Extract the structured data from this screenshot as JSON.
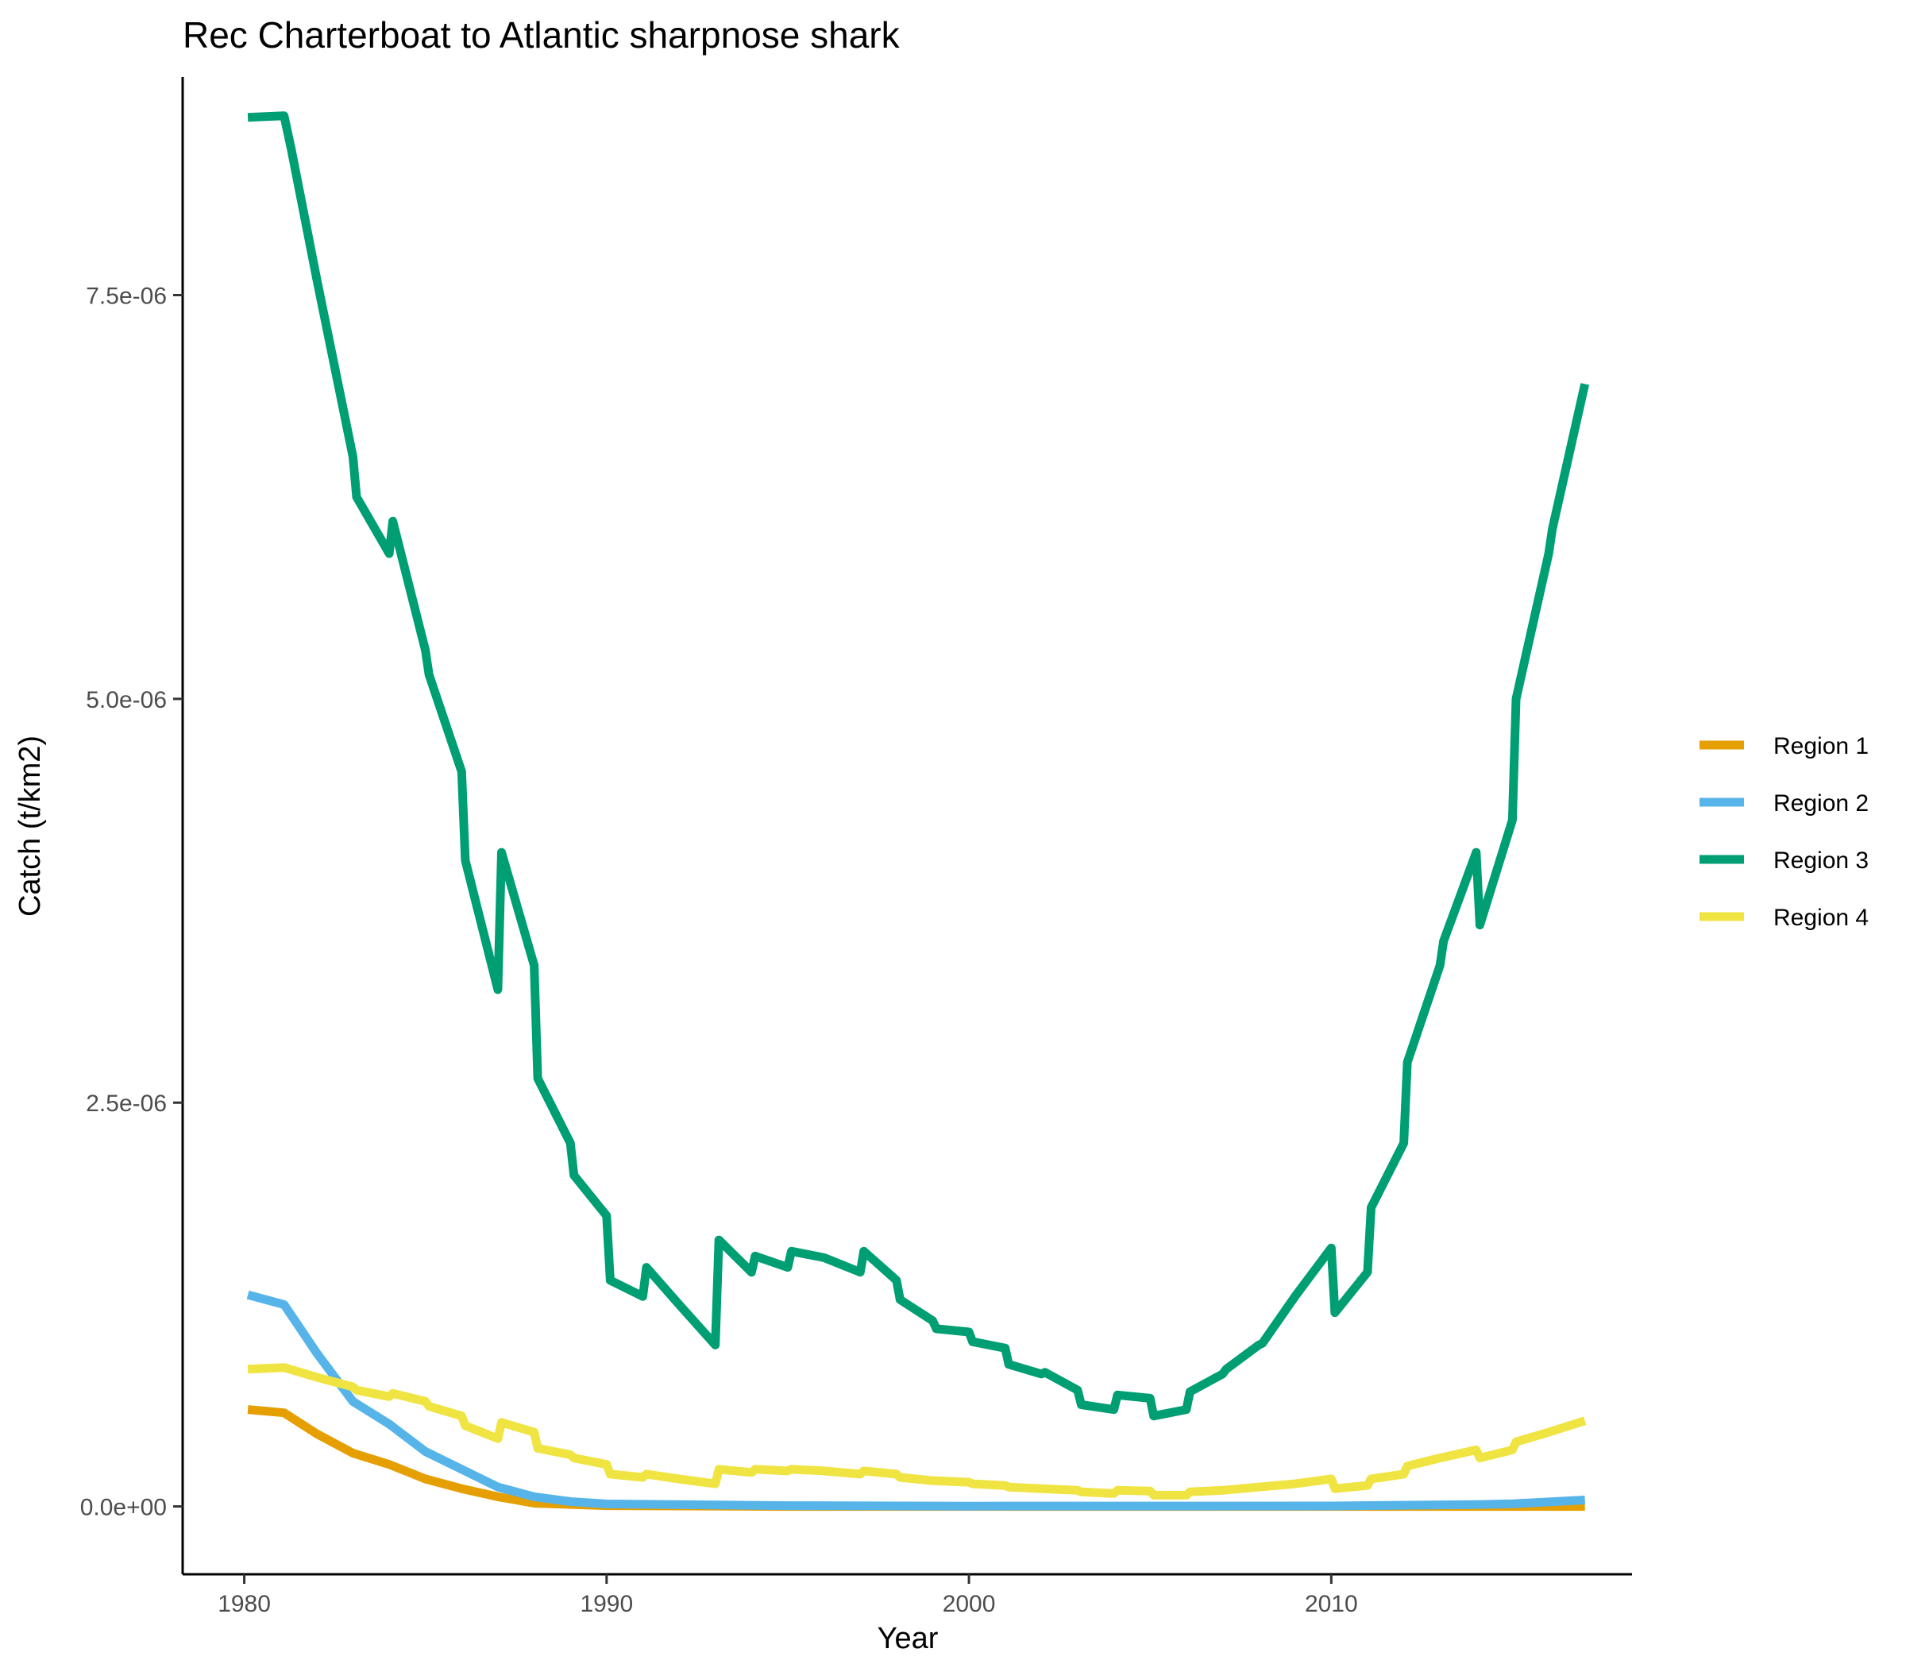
{
  "chart_data": {
    "type": "line",
    "title": "Rec Charterboat to Atlantic sharpnose shark",
    "xlabel": "Year",
    "ylabel": "Catch (t/km2)",
    "xlim": [
      1978.3,
      2018.3
    ],
    "ylim": [
      -4.2e-07,
      8.85e-06
    ],
    "x_ticks": [
      1980,
      1990,
      2000,
      2010
    ],
    "x_tick_labels": [
      "1980",
      "1990",
      "2000",
      "2010"
    ],
    "y_ticks": [
      0,
      2.5e-06,
      5e-06,
      7.5e-06
    ],
    "y_tick_labels": [
      "0.0e+00",
      "2.5e-06",
      "5.0e-06",
      "7.5e-06"
    ],
    "grid": false,
    "legend_position": "right",
    "series": [
      {
        "name": "Region 1",
        "color": "#E69F00",
        "points": [
          [
            1980.1,
            6e-07
          ],
          [
            1981.1,
            5.8e-07
          ],
          [
            1982,
            4.5e-07
          ],
          [
            1983,
            3.3e-07
          ],
          [
            1984,
            2.6e-07
          ],
          [
            1985,
            1.7e-07
          ],
          [
            1986,
            1.1e-07
          ],
          [
            1987,
            6e-08
          ],
          [
            1988,
            2e-08
          ],
          [
            1990,
            5e-09
          ],
          [
            1995,
            0
          ],
          [
            2000,
            0
          ],
          [
            2010,
            0
          ],
          [
            2017,
            0
          ]
        ]
      },
      {
        "name": "Region 2",
        "color": "#56B4E9",
        "points": [
          [
            1980.1,
            1.31e-06
          ],
          [
            1981.1,
            1.25e-06
          ],
          [
            1982,
            9.5e-07
          ],
          [
            1983,
            6.5e-07
          ],
          [
            1984,
            5.1e-07
          ],
          [
            1985,
            3.4e-07
          ],
          [
            1986,
            2.3e-07
          ],
          [
            1987,
            1.2e-07
          ],
          [
            1988,
            6e-08
          ],
          [
            1989,
            3e-08
          ],
          [
            1990,
            1.5e-08
          ],
          [
            1995,
            5e-09
          ],
          [
            2000,
            2e-09
          ],
          [
            2010,
            3e-09
          ],
          [
            2014,
            1.2e-08
          ],
          [
            2015,
            1.6e-08
          ],
          [
            2017,
            4e-08
          ]
        ]
      },
      {
        "name": "Region 3",
        "color": "#009E73",
        "points": [
          [
            1980.1,
            8.6e-06
          ],
          [
            1981.1,
            8.61e-06
          ],
          [
            1981.3,
            8.4e-06
          ],
          [
            1982,
            7.6e-06
          ],
          [
            1983,
            6.5e-06
          ],
          [
            1983.1,
            6.25e-06
          ],
          [
            1984,
            5.9e-06
          ],
          [
            1984.1,
            6.1e-06
          ],
          [
            1985,
            5.3e-06
          ],
          [
            1985.1,
            5.15e-06
          ],
          [
            1986,
            4.55e-06
          ],
          [
            1986.1,
            4e-06
          ],
          [
            1987,
            3.2e-06
          ],
          [
            1987.1,
            4.05e-06
          ],
          [
            1988,
            3.35e-06
          ],
          [
            1988.1,
            2.65e-06
          ],
          [
            1989,
            2.25e-06
          ],
          [
            1989.1,
            2.05e-06
          ],
          [
            1990,
            1.8e-06
          ],
          [
            1990.1,
            1.4e-06
          ],
          [
            1991,
            1.3e-06
          ],
          [
            1991.1,
            1.48e-06
          ],
          [
            1992,
            1.25e-06
          ],
          [
            1993,
            1e-06
          ],
          [
            1993.1,
            1.65e-06
          ],
          [
            1994,
            1.45e-06
          ],
          [
            1994.1,
            1.55e-06
          ],
          [
            1995,
            1.48e-06
          ],
          [
            1995.1,
            1.58e-06
          ],
          [
            1996,
            1.54e-06
          ],
          [
            1997,
            1.45e-06
          ],
          [
            1997.1,
            1.58e-06
          ],
          [
            1998,
            1.4e-06
          ],
          [
            1998.1,
            1.28e-06
          ],
          [
            1999,
            1.15e-06
          ],
          [
            1999.1,
            1.1e-06
          ],
          [
            2000,
            1.08e-06
          ],
          [
            2000.1,
            1.02e-06
          ],
          [
            2001,
            9.8e-07
          ],
          [
            2001.1,
            8.8e-07
          ],
          [
            2002,
            8.2e-07
          ],
          [
            2002.1,
            8.3e-07
          ],
          [
            2003,
            7.2e-07
          ],
          [
            2003.1,
            6.3e-07
          ],
          [
            2004,
            6e-07
          ],
          [
            2004.1,
            6.9e-07
          ],
          [
            2005,
            6.7e-07
          ],
          [
            2005.1,
            5.6e-07
          ],
          [
            2006,
            6e-07
          ],
          [
            2006.1,
            7.1e-07
          ],
          [
            2007,
            8.2e-07
          ],
          [
            2007.1,
            8.5e-07
          ],
          [
            2008,
            1e-06
          ],
          [
            2008.1,
            1.01e-06
          ],
          [
            2009,
            1.3e-06
          ],
          [
            2009.1,
            1.33e-06
          ],
          [
            2010,
            1.6e-06
          ],
          [
            2010.1,
            1.2e-06
          ],
          [
            2011,
            1.45e-06
          ],
          [
            2011.1,
            1.85e-06
          ],
          [
            2012,
            2.25e-06
          ],
          [
            2012.1,
            2.75e-06
          ],
          [
            2013,
            3.35e-06
          ],
          [
            2013.1,
            3.5e-06
          ],
          [
            2014,
            4.05e-06
          ],
          [
            2014.1,
            3.6e-06
          ],
          [
            2015,
            4.25e-06
          ],
          [
            2015.1,
            5e-06
          ],
          [
            2016,
            5.9e-06
          ],
          [
            2016.1,
            6.05e-06
          ],
          [
            2017,
            6.95e-06
          ]
        ]
      },
      {
        "name": "Region 4",
        "color": "#F0E442",
        "points": [
          [
            1980.1,
            8.5e-07
          ],
          [
            1981.1,
            8.6e-07
          ],
          [
            1982,
            8e-07
          ],
          [
            1983,
            7.4e-07
          ],
          [
            1983.1,
            7.2e-07
          ],
          [
            1984,
            6.8e-07
          ],
          [
            1984.1,
            7e-07
          ],
          [
            1985,
            6.5e-07
          ],
          [
            1985.1,
            6.2e-07
          ],
          [
            1986,
            5.6e-07
          ],
          [
            1986.1,
            5e-07
          ],
          [
            1987,
            4.2e-07
          ],
          [
            1987.1,
            5.2e-07
          ],
          [
            1988,
            4.6e-07
          ],
          [
            1988.1,
            3.6e-07
          ],
          [
            1989,
            3.2e-07
          ],
          [
            1989.1,
            3e-07
          ],
          [
            1990,
            2.6e-07
          ],
          [
            1990.1,
            2e-07
          ],
          [
            1991,
            1.8e-07
          ],
          [
            1991.1,
            2e-07
          ],
          [
            1992,
            1.7e-07
          ],
          [
            1993,
            1.4e-07
          ],
          [
            1993.1,
            2.3e-07
          ],
          [
            1994,
            2.1e-07
          ],
          [
            1994.1,
            2.3e-07
          ],
          [
            1995,
            2.2e-07
          ],
          [
            1995.1,
            2.3e-07
          ],
          [
            1996,
            2.2e-07
          ],
          [
            1997,
            2e-07
          ],
          [
            1997.1,
            2.2e-07
          ],
          [
            1998,
            2e-07
          ],
          [
            1998.1,
            1.8e-07
          ],
          [
            1999,
            1.6e-07
          ],
          [
            2000,
            1.5e-07
          ],
          [
            2000.1,
            1.4e-07
          ],
          [
            2001,
            1.3e-07
          ],
          [
            2001.1,
            1.2e-07
          ],
          [
            2002,
            1.1e-07
          ],
          [
            2003,
            1e-07
          ],
          [
            2003.1,
            9e-08
          ],
          [
            2004,
            8e-08
          ],
          [
            2004.1,
            1e-07
          ],
          [
            2005,
            9.5e-08
          ],
          [
            2005.1,
            7e-08
          ],
          [
            2006,
            7e-08
          ],
          [
            2006.1,
            9e-08
          ],
          [
            2007,
            1e-07
          ],
          [
            2008,
            1.2e-07
          ],
          [
            2009,
            1.4e-07
          ],
          [
            2010,
            1.7e-07
          ],
          [
            2010.1,
            1.1e-07
          ],
          [
            2011,
            1.3e-07
          ],
          [
            2011.1,
            1.7e-07
          ],
          [
            2012,
            2e-07
          ],
          [
            2012.1,
            2.5e-07
          ],
          [
            2013,
            3e-07
          ],
          [
            2014,
            3.5e-07
          ],
          [
            2014.1,
            3e-07
          ],
          [
            2015,
            3.5e-07
          ],
          [
            2015.1,
            4e-07
          ],
          [
            2016,
            4.6e-07
          ],
          [
            2017,
            5.3e-07
          ]
        ]
      }
    ]
  }
}
